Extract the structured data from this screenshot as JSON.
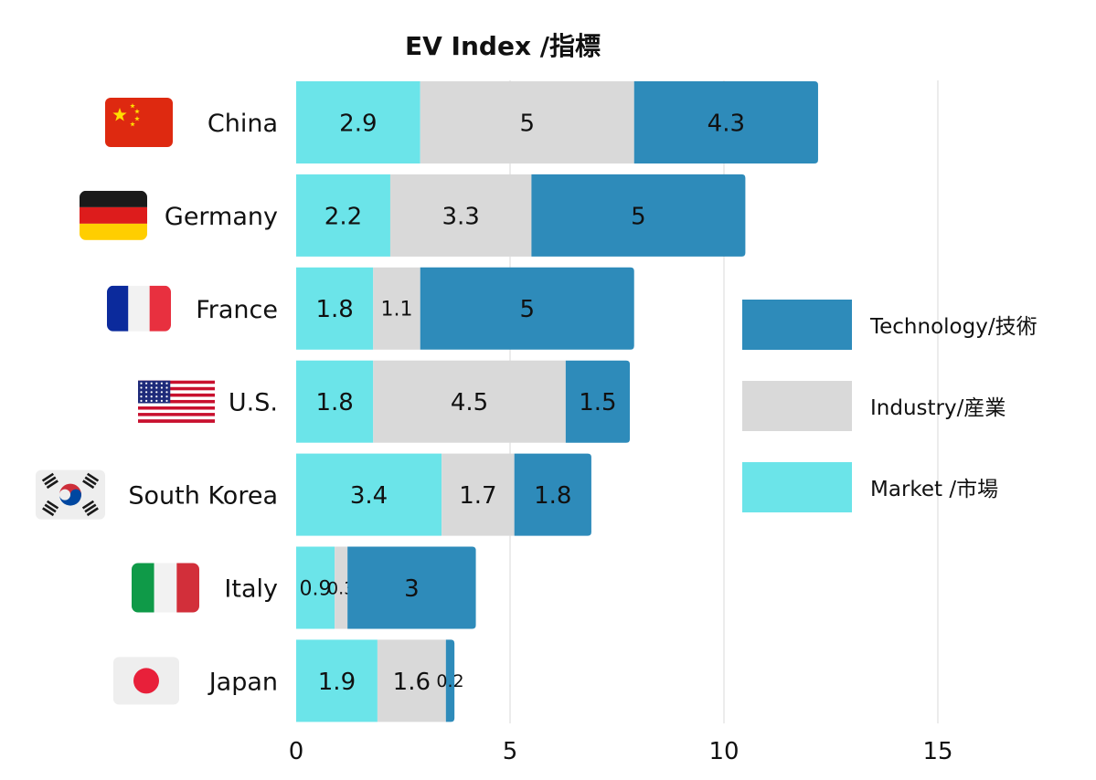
{
  "chart_data": {
    "type": "bar",
    "orientation": "horizontal",
    "stacked": true,
    "title": "EV Index /指標",
    "categories": [
      "China",
      "Germany",
      "France",
      "U.S.",
      "South Korea",
      "Italy",
      "Japan"
    ],
    "flags": [
      "china-flag",
      "germany-flag",
      "france-flag",
      "us-flag",
      "south-korea-flag",
      "italy-flag",
      "japan-flag"
    ],
    "series": [
      {
        "name": "Market /市場",
        "color": "#6be4e9",
        "values": [
          2.9,
          2.2,
          1.8,
          1.8,
          3.4,
          0.9,
          1.9
        ]
      },
      {
        "name": "Industry/産業",
        "color": "#d9d9d9",
        "values": [
          5,
          3.3,
          1.1,
          4.5,
          1.7,
          0.3,
          1.6
        ]
      },
      {
        "name": "Technology/技術",
        "color": "#2e8bba",
        "values": [
          4.3,
          5,
          5,
          1.5,
          1.8,
          3,
          0.2
        ]
      }
    ],
    "legend_order": [
      "Technology/技術",
      "Industry/産業",
      "Market /市場"
    ],
    "xlim": [
      0,
      15
    ],
    "xticks": [
      0,
      5,
      10,
      15
    ],
    "xlabel": "",
    "ylabel": "",
    "grid": "vertical",
    "legend_position": "right"
  }
}
